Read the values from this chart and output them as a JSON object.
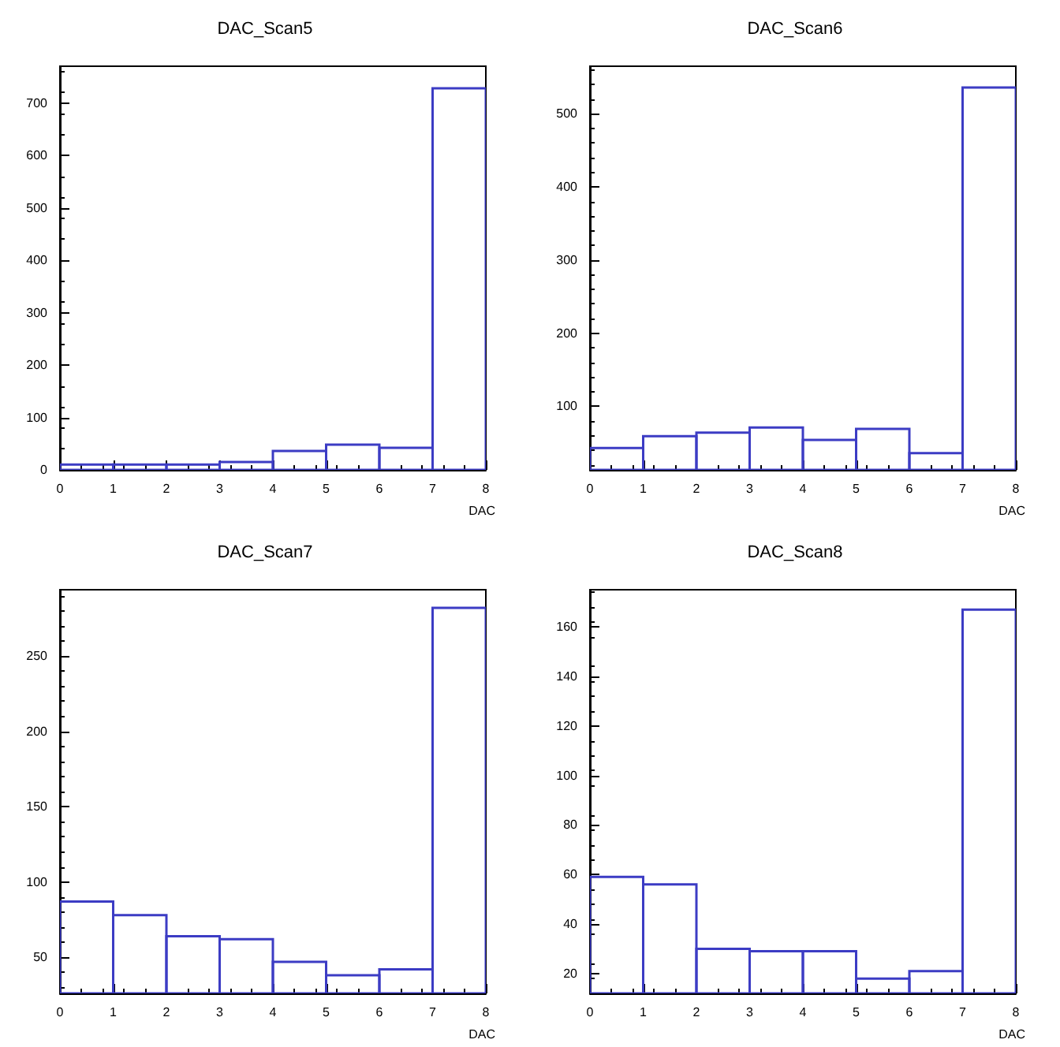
{
  "chart_data": [
    {
      "type": "histogram",
      "title": "DAC_Scan5",
      "xlabel": "DAC",
      "bins": [
        0,
        1,
        2,
        3,
        4,
        5,
        6,
        7,
        8
      ],
      "values": [
        10,
        10,
        10,
        15,
        36,
        48,
        42,
        728
      ],
      "color": "#3c3cc4",
      "xlim": [
        0,
        8
      ],
      "xticks": [
        0,
        1,
        2,
        3,
        4,
        5,
        6,
        7,
        8
      ],
      "ylim": [
        0,
        770
      ],
      "yticks": [
        0,
        100,
        200,
        300,
        400,
        500,
        600,
        700
      ],
      "grid": false
    },
    {
      "type": "histogram",
      "title": "DAC_Scan6",
      "xlabel": "DAC",
      "bins": [
        0,
        1,
        2,
        3,
        4,
        5,
        6,
        7,
        8
      ],
      "values": [
        43,
        59,
        64,
        71,
        54,
        69,
        36,
        536
      ],
      "color": "#3c3cc4",
      "xlim": [
        0,
        8
      ],
      "xticks": [
        0,
        1,
        2,
        3,
        4,
        5,
        6,
        7,
        8
      ],
      "ylim": [
        13,
        565
      ],
      "yticks": [
        100,
        200,
        300,
        400,
        500
      ],
      "grid": false
    },
    {
      "type": "histogram",
      "title": "DAC_Scan7",
      "xlabel": "DAC",
      "bins": [
        0,
        1,
        2,
        3,
        4,
        5,
        6,
        7,
        8
      ],
      "values": [
        87,
        78,
        64,
        62,
        47,
        38,
        42,
        282
      ],
      "color": "#3c3cc4",
      "xlim": [
        0,
        8
      ],
      "xticks": [
        0,
        1,
        2,
        3,
        4,
        5,
        6,
        7,
        8
      ],
      "ylim": [
        26,
        294
      ],
      "yticks": [
        50,
        100,
        150,
        200,
        250
      ],
      "grid": false
    },
    {
      "type": "histogram",
      "title": "DAC_Scan8",
      "xlabel": "DAC",
      "bins": [
        0,
        1,
        2,
        3,
        4,
        5,
        6,
        7,
        8
      ],
      "values": [
        59,
        56,
        30,
        29,
        29,
        18,
        21,
        167
      ],
      "color": "#3c3cc4",
      "xlim": [
        0,
        8
      ],
      "xticks": [
        0,
        1,
        2,
        3,
        4,
        5,
        6,
        7,
        8
      ],
      "ylim": [
        12,
        175
      ],
      "yticks": [
        20,
        40,
        60,
        80,
        100,
        120,
        140,
        160
      ],
      "grid": false
    }
  ]
}
